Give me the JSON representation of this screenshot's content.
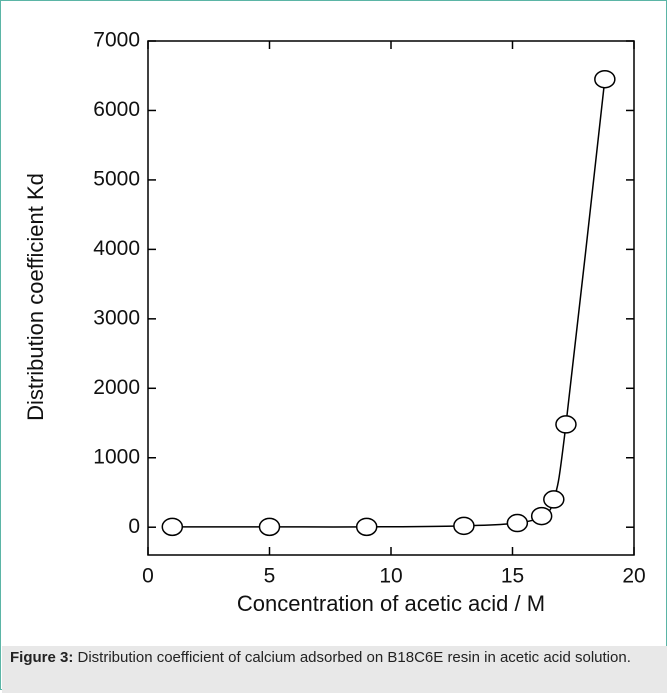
{
  "chart_data": {
    "type": "line",
    "x_label": "Concentration of acetic acid / M",
    "y_label": "Distribution coefficient  Kd",
    "x": [
      1,
      5,
      9,
      13,
      15.2,
      16.2,
      16.7,
      17.2,
      18.8
    ],
    "series": [
      {
        "name": "Kd",
        "color": "#000000",
        "values": [
          5,
          5,
          5,
          20,
          60,
          160,
          400,
          1480,
          6450
        ]
      }
    ],
    "xlim": [
      0,
      20
    ],
    "xticks": [
      0,
      5,
      10,
      15,
      20
    ],
    "ylim": [
      -400,
      7000
    ],
    "yticks": [
      0,
      1000,
      2000,
      3000,
      4000,
      5000,
      6000,
      7000
    ],
    "marker": "open-circle",
    "smooth": true
  },
  "caption": {
    "label": "Figure 3:",
    "text": "Distribution coefficient of calcium adsorbed on B18C6E resin in acetic acid solution."
  }
}
